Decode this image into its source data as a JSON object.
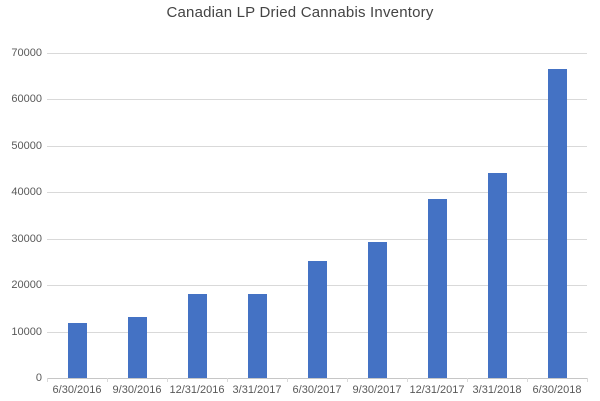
{
  "chart_data": {
    "type": "bar",
    "title": "Canadian LP Dried Cannabis Inventory",
    "categories": [
      "6/30/2016",
      "9/30/2016",
      "12/31/2016",
      "3/31/2017",
      "6/30/2017",
      "9/30/2017",
      "12/31/2017",
      "3/31/2018",
      "6/30/2018"
    ],
    "values": [
      11900,
      13200,
      18100,
      18100,
      25100,
      29200,
      38600,
      44100,
      66600
    ],
    "xlabel": "",
    "ylabel": "",
    "ylim": [
      0,
      70000
    ],
    "ytick_step": 10000,
    "ytick_labels": [
      "0",
      "10000",
      "20000",
      "30000",
      "40000",
      "50000",
      "60000",
      "70000"
    ],
    "grid": "horizontal",
    "legend": "none",
    "colors": {
      "bar": "#4472C4",
      "gridline": "#d9d9d9",
      "axis_line": "#c6c6c6",
      "tick_text": "#595959",
      "title_text": "#444444",
      "background": "#ffffff"
    }
  }
}
